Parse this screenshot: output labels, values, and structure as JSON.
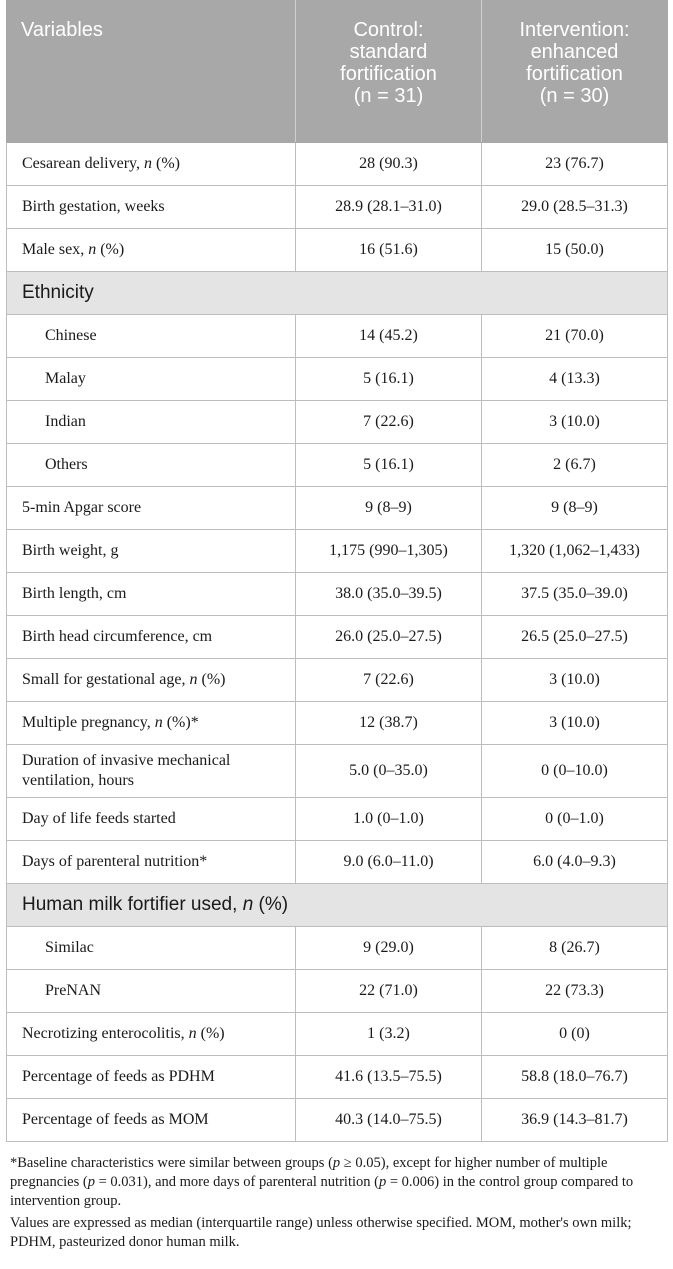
{
  "header": {
    "col1": "Variables",
    "col2_line1": "Control:",
    "col2_line2": "standard",
    "col2_line3": "fortification",
    "col2_n": "(n = 31)",
    "col3_line1": "Intervention:",
    "col3_line2": "enhanced",
    "col3_line3": "fortification",
    "col3_n": "(n = 30)"
  },
  "rows": [
    {
      "label": "Cesarean delivery, ",
      "label_it": "n",
      "label_tail": " (%)",
      "control": "28 (90.3)",
      "intervention": "23 (76.7)"
    },
    {
      "label": "Birth gestation, weeks",
      "control": "28.9 (28.1–31.0)",
      "intervention": "29.0 (28.5–31.3)"
    },
    {
      "label": "Male sex, ",
      "label_it": "n",
      "label_tail": " (%)",
      "control": "16 (51.6)",
      "intervention": "15 (50.0)"
    },
    {
      "section": "Ethnicity"
    },
    {
      "label": "Chinese",
      "control": "14 (45.2)",
      "intervention": "21 (70.0)"
    },
    {
      "label": "Malay",
      "control": "5 (16.1)",
      "intervention": "4 (13.3)"
    },
    {
      "label": "Indian",
      "control": "7 (22.6)",
      "intervention": "3 (10.0)"
    },
    {
      "label": "Others",
      "control": "5 (16.1)",
      "intervention": "2 (6.7)"
    },
    {
      "label": "5-min Apgar score",
      "control": "9 (8–9)",
      "intervention": "9 (8–9)"
    },
    {
      "label": "Birth weight, g",
      "control": "1,175 (990–1,305)",
      "intervention": "1,320 (1,062–1,433)"
    },
    {
      "label": "Birth length, cm",
      "control": "38.0 (35.0–39.5)",
      "intervention": "37.5 (35.0–39.0)"
    },
    {
      "label": "Birth head circumference, cm",
      "control": "26.0 (25.0–27.5)",
      "intervention": "26.5 (25.0–27.5)"
    },
    {
      "label": "Small for gestational age, ",
      "label_it": "n",
      "label_tail": " (%)",
      "control": "7 (22.6)",
      "intervention": "3 (10.0)"
    },
    {
      "label": "Multiple pregnancy, ",
      "label_it": "n",
      "label_tail": " (%)*",
      "control": "12 (38.7)",
      "intervention": "3 (10.0)"
    },
    {
      "label_line1": "Duration of invasive mechanical",
      "label_line2": "ventilation, hours",
      "control": "5.0 (0–35.0)",
      "intervention": "0 (0–10.0)"
    },
    {
      "label": "Day of life feeds started",
      "control": "1.0 (0–1.0)",
      "intervention": "0 (0–1.0)"
    },
    {
      "label": "Days of parenteral nutrition*",
      "control": "9.0 (6.0–11.0)",
      "intervention": "6.0 (4.0–9.3)"
    },
    {
      "section": "Human milk fortifier used, ",
      "section_it": "n",
      "section_tail": " (%)"
    },
    {
      "label": "Similac",
      "control": "9 (29.0)",
      "intervention": "8 (26.7)"
    },
    {
      "label": "PreNAN",
      "control": "22 (71.0)",
      "intervention": "22 (73.3)"
    },
    {
      "label": "Necrotizing enterocolitis, ",
      "label_it": "n",
      "label_tail": " (%)",
      "control": "1 (3.2)",
      "intervention": "0 (0)"
    },
    {
      "label": "Percentage of feeds as PDHM",
      "control": "41.6 (13.5–75.5)",
      "intervention": "58.8 (18.0–76.7)"
    },
    {
      "label": "Percentage of feeds as MOM",
      "control": "40.3 (14.0–75.5)",
      "intervention": "36.9 (14.3–81.7)"
    }
  ],
  "footnotes": {
    "note1_a": "*Baseline characteristics were similar between groups (",
    "note1_p1": "p",
    "note1_b": " ≥ 0.05), except for higher number of multiple pregnancies (",
    "note1_p2": "p",
    "note1_c": " = 0.031), and more days of parenteral nutrition (",
    "note1_p3": "p",
    "note1_d": " = 0.006) in the control group compared to intervention group.",
    "note2": "Values are expressed as median (interquartile range) unless otherwise specified. MOM, mother's own milk; PDHM, pasteurized donor human milk."
  }
}
